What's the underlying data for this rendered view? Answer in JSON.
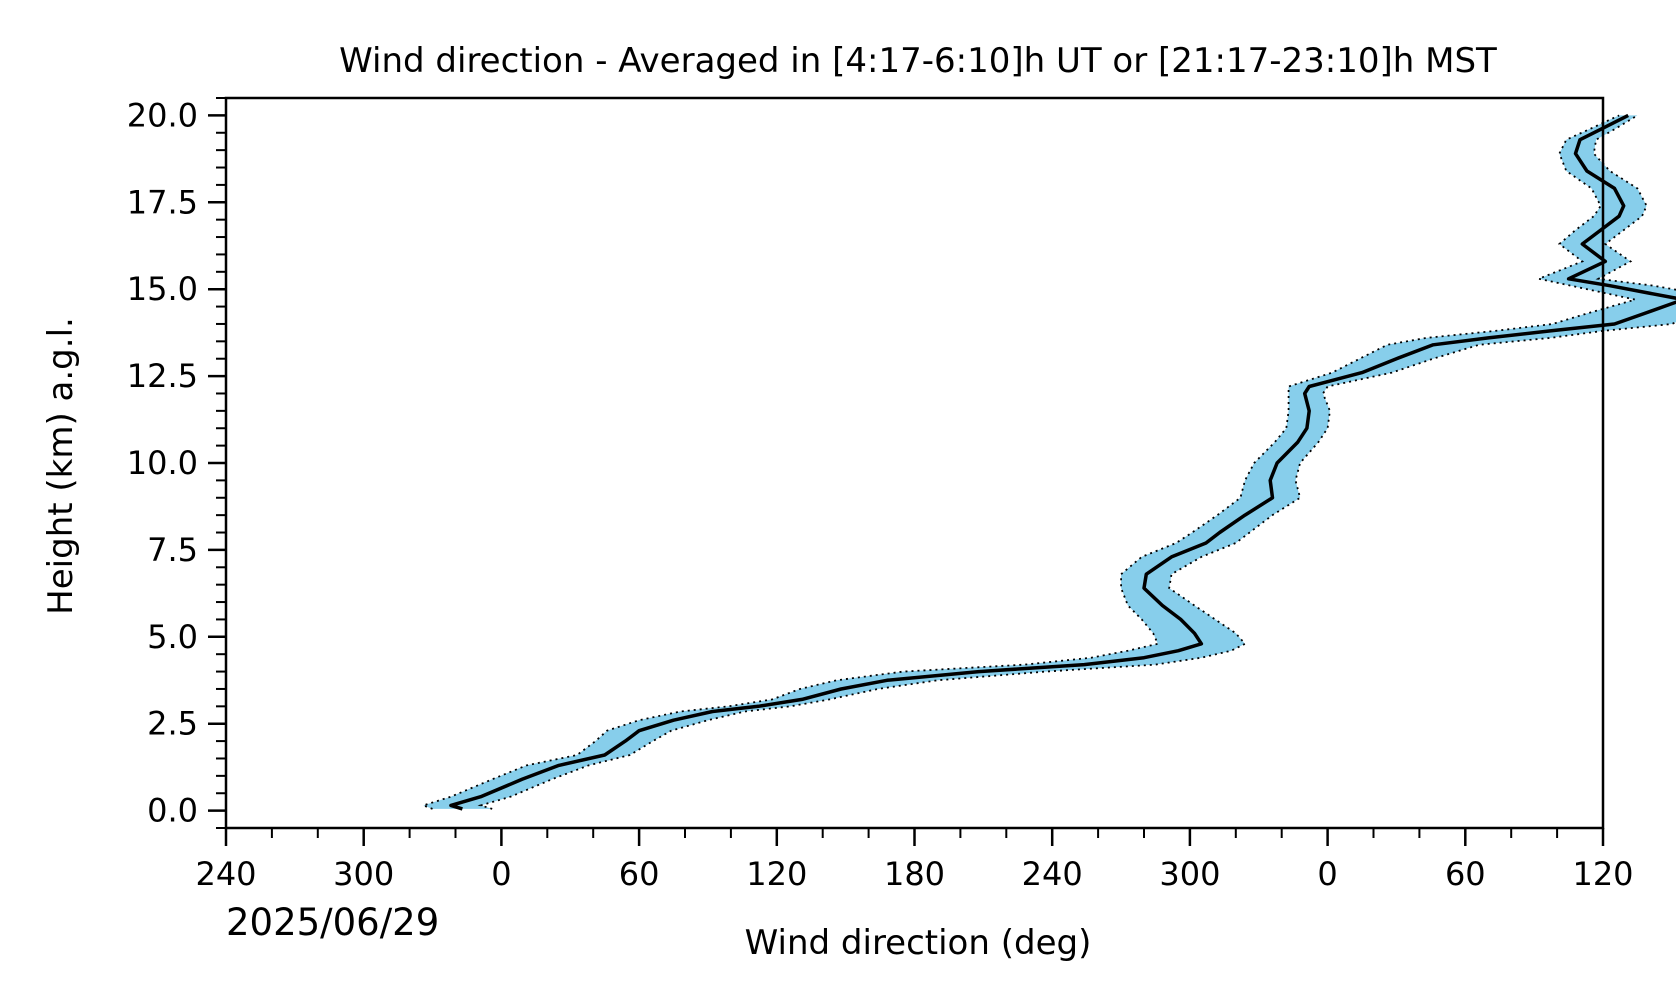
{
  "chart_data": {
    "type": "line",
    "title": "Wind direction - Averaged in [4:17-6:10]h UT or [21:17-23:10]h MST",
    "xlabel": "Wind direction (deg)",
    "ylabel": "Height (km) a.g.l.",
    "date_label": "2025/06/29",
    "xlim": [
      240,
      840
    ],
    "ylim": [
      -0.5,
      20.5
    ],
    "x_ticks": [
      {
        "value": 240,
        "label": "240"
      },
      {
        "value": 300,
        "label": "300"
      },
      {
        "value": 360,
        "label": "0"
      },
      {
        "value": 420,
        "label": "60"
      },
      {
        "value": 480,
        "label": "120"
      },
      {
        "value": 540,
        "label": "180"
      },
      {
        "value": 600,
        "label": "240"
      },
      {
        "value": 660,
        "label": "300"
      },
      {
        "value": 720,
        "label": "0"
      },
      {
        "value": 780,
        "label": "60"
      },
      {
        "value": 840,
        "label": "120"
      }
    ],
    "y_ticks": [
      {
        "value": 0.0,
        "label": "0.0"
      },
      {
        "value": 2.5,
        "label": "2.5"
      },
      {
        "value": 5.0,
        "label": "5.0"
      },
      {
        "value": 7.5,
        "label": "7.5"
      },
      {
        "value": 10.0,
        "label": "10.0"
      },
      {
        "value": 12.5,
        "label": "12.5"
      },
      {
        "value": 15.0,
        "label": "15.0"
      },
      {
        "value": 17.5,
        "label": "17.5"
      },
      {
        "value": 20.0,
        "label": "20.0"
      }
    ],
    "grid": false,
    "colors": {
      "mean_line": "#000000",
      "band_fill": "#87ceeb",
      "band_edge": "#000000"
    },
    "series": [
      {
        "role": "mean",
        "points": [
          [
            343,
            0.05
          ],
          [
            338,
            0.15
          ],
          [
            351,
            0.4
          ],
          [
            369,
            0.9
          ],
          [
            385,
            1.3
          ],
          [
            405,
            1.6
          ],
          [
            414,
            2.0
          ],
          [
            420,
            2.3
          ],
          [
            435,
            2.6
          ],
          [
            452,
            2.85
          ],
          [
            472,
            3.0
          ],
          [
            491,
            3.2
          ],
          [
            508,
            3.5
          ],
          [
            528,
            3.75
          ],
          [
            568,
            4.0
          ],
          [
            614,
            4.2
          ],
          [
            640,
            4.4
          ],
          [
            655,
            4.6
          ],
          [
            665,
            4.8
          ],
          [
            662,
            5.1
          ],
          [
            656,
            5.5
          ],
          [
            648,
            5.9
          ],
          [
            640,
            6.4
          ],
          [
            641,
            6.8
          ],
          [
            652,
            7.3
          ],
          [
            667,
            7.7
          ],
          [
            673,
            8.0
          ],
          [
            684,
            8.5
          ],
          [
            696,
            9.0
          ],
          [
            695,
            9.5
          ],
          [
            698,
            10.0
          ],
          [
            707,
            10.6
          ],
          [
            711,
            11.0
          ],
          [
            712,
            11.5
          ],
          [
            710,
            12.0
          ],
          [
            712,
            12.2
          ],
          [
            735,
            12.6
          ],
          [
            750,
            13.0
          ],
          [
            766,
            13.4
          ],
          [
            790,
            13.6
          ],
          [
            817,
            13.8
          ],
          [
            845,
            14.0
          ],
          [
            858,
            14.3
          ],
          [
            875,
            14.7
          ],
          [
            843,
            15.1
          ],
          [
            825,
            15.3
          ],
          [
            841,
            15.8
          ],
          [
            831,
            16.3
          ],
          [
            839,
            16.7
          ],
          [
            847,
            17.1
          ],
          [
            849,
            17.4
          ],
          [
            845,
            17.9
          ],
          [
            833,
            18.4
          ],
          [
            828,
            18.9
          ],
          [
            830,
            19.3
          ],
          [
            839,
            19.6
          ],
          [
            851,
            20.0
          ]
        ]
      },
      {
        "role": "band-lower",
        "points": [
          [
            330,
            0.05
          ],
          [
            326,
            0.15
          ],
          [
            338,
            0.4
          ],
          [
            356,
            0.9
          ],
          [
            371,
            1.3
          ],
          [
            393,
            1.6
          ],
          [
            401,
            2.0
          ],
          [
            406,
            2.3
          ],
          [
            420,
            2.6
          ],
          [
            438,
            2.85
          ],
          [
            459,
            3.0
          ],
          [
            478,
            3.2
          ],
          [
            490,
            3.5
          ],
          [
            506,
            3.75
          ],
          [
            535,
            4.0
          ],
          [
            588,
            4.2
          ],
          [
            617,
            4.4
          ],
          [
            633,
            4.6
          ],
          [
            646,
            4.8
          ],
          [
            644,
            5.1
          ],
          [
            639,
            5.5
          ],
          [
            633,
            5.9
          ],
          [
            630,
            6.4
          ],
          [
            630,
            6.8
          ],
          [
            639,
            7.3
          ],
          [
            654,
            7.7
          ],
          [
            661,
            8.0
          ],
          [
            672,
            8.5
          ],
          [
            682,
            9.0
          ],
          [
            684,
            9.5
          ],
          [
            688,
            10.0
          ],
          [
            697,
            10.6
          ],
          [
            702,
            11.0
          ],
          [
            703,
            11.5
          ],
          [
            703,
            12.0
          ],
          [
            703,
            12.2
          ],
          [
            722,
            12.6
          ],
          [
            734,
            13.0
          ],
          [
            746,
            13.4
          ],
          [
            763,
            13.6
          ],
          [
            793,
            13.8
          ],
          [
            818,
            14.0
          ],
          [
            833,
            14.3
          ],
          [
            854,
            14.7
          ],
          [
            826,
            15.1
          ],
          [
            812,
            15.3
          ],
          [
            831,
            15.8
          ],
          [
            821,
            16.3
          ],
          [
            828,
            16.7
          ],
          [
            836,
            17.1
          ],
          [
            839,
            17.4
          ],
          [
            835,
            17.9
          ],
          [
            824,
            18.4
          ],
          [
            821,
            18.9
          ],
          [
            824,
            19.3
          ],
          [
            834,
            19.6
          ],
          [
            847,
            20.0
          ]
        ]
      },
      {
        "role": "band-upper",
        "points": [
          [
            356,
            0.05
          ],
          [
            351,
            0.15
          ],
          [
            364,
            0.4
          ],
          [
            382,
            0.9
          ],
          [
            398,
            1.3
          ],
          [
            416,
            1.6
          ],
          [
            426,
            2.0
          ],
          [
            434,
            2.3
          ],
          [
            450,
            2.6
          ],
          [
            466,
            2.85
          ],
          [
            486,
            3.0
          ],
          [
            503,
            3.2
          ],
          [
            524,
            3.5
          ],
          [
            550,
            3.75
          ],
          [
            597,
            4.0
          ],
          [
            645,
            4.2
          ],
          [
            665,
            4.4
          ],
          [
            678,
            4.6
          ],
          [
            684,
            4.8
          ],
          [
            680,
            5.1
          ],
          [
            671,
            5.5
          ],
          [
            662,
            5.9
          ],
          [
            651,
            6.4
          ],
          [
            652,
            6.8
          ],
          [
            665,
            7.3
          ],
          [
            680,
            7.7
          ],
          [
            686,
            8.0
          ],
          [
            696,
            8.5
          ],
          [
            708,
            9.0
          ],
          [
            706,
            9.5
          ],
          [
            708,
            10.0
          ],
          [
            716,
            10.6
          ],
          [
            720,
            11.0
          ],
          [
            721,
            11.5
          ],
          [
            718,
            12.0
          ],
          [
            720,
            12.2
          ],
          [
            748,
            12.6
          ],
          [
            766,
            13.0
          ],
          [
            786,
            13.4
          ],
          [
            817,
            13.6
          ],
          [
            840,
            13.8
          ],
          [
            870,
            14.0
          ],
          [
            880,
            14.3
          ],
          [
            896,
            14.7
          ],
          [
            862,
            15.1
          ],
          [
            838,
            15.3
          ],
          [
            852,
            15.8
          ],
          [
            841,
            16.3
          ],
          [
            849,
            16.7
          ],
          [
            857,
            17.1
          ],
          [
            859,
            17.4
          ],
          [
            855,
            17.9
          ],
          [
            843,
            18.4
          ],
          [
            836,
            18.9
          ],
          [
            837,
            19.3
          ],
          [
            845,
            19.6
          ],
          [
            855,
            20.0
          ]
        ]
      }
    ]
  }
}
